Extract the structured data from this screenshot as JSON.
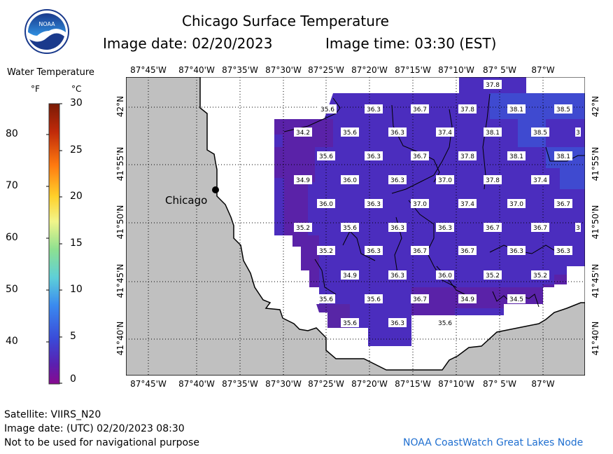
{
  "header": {
    "title": "Chicago Surface Temperature",
    "image_date": "Image date: 02/20/2023",
    "image_time": "Image time: 03:30 (EST)"
  },
  "logo": {
    "text": "NOAA",
    "icon": "noaa-logo"
  },
  "legend": {
    "title": "Water Temperature",
    "unit_f": "°F",
    "unit_c": "°C",
    "f_ticks": [
      "80",
      "70",
      "60",
      "50",
      "40"
    ],
    "c_ticks": [
      "30",
      "25",
      "20",
      "15",
      "10",
      "5",
      "0"
    ]
  },
  "map": {
    "lon_labels": [
      "87°45'W",
      "87°40'W",
      "87°35'W",
      "87°30'W",
      "87°25'W",
      "87°20'W",
      "87°15'W",
      "87°10'W",
      "87° 5'W",
      "87°W"
    ],
    "lat_labels": [
      "42°N",
      "41°55'N",
      "41°50'N",
      "41°45'N",
      "41°40'N"
    ],
    "city_label": "Chicago",
    "colors": {
      "land": "#c0c0c0",
      "water_warm": "#4a2fc0",
      "water_cool": "#5a22a8",
      "water_edge": "#3d48cc"
    },
    "temperature_labels": [
      {
        "v": "37.8"
      },
      {
        "v": "35.6"
      },
      {
        "v": "36.3"
      },
      {
        "v": "36.7"
      },
      {
        "v": "37.8"
      },
      {
        "v": "38.1"
      },
      {
        "v": "38.5"
      },
      {
        "v": "34.2"
      },
      {
        "v": "35.6"
      },
      {
        "v": "36.3"
      },
      {
        "v": "37.4"
      },
      {
        "v": "38.1"
      },
      {
        "v": "38.5"
      },
      {
        "v": "3"
      },
      {
        "v": "35.6"
      },
      {
        "v": "36.3"
      },
      {
        "v": "36.7"
      },
      {
        "v": "37.8"
      },
      {
        "v": "38.1"
      },
      {
        "v": "38.1"
      },
      {
        "v": "34.9"
      },
      {
        "v": "36.0"
      },
      {
        "v": "36.3"
      },
      {
        "v": "37.0"
      },
      {
        "v": "37.8"
      },
      {
        "v": "37.4"
      },
      {
        "v": "36.0"
      },
      {
        "v": "36.3"
      },
      {
        "v": "37.0"
      },
      {
        "v": "37.4"
      },
      {
        "v": "37.0"
      },
      {
        "v": "36.7"
      },
      {
        "v": "35.2"
      },
      {
        "v": "35.6"
      },
      {
        "v": "36.3"
      },
      {
        "v": "36.3"
      },
      {
        "v": "36.7"
      },
      {
        "v": "36.7"
      },
      {
        "v": "3"
      },
      {
        "v": "35.2"
      },
      {
        "v": "36.3"
      },
      {
        "v": "36.7"
      },
      {
        "v": "36.7"
      },
      {
        "v": "36.3"
      },
      {
        "v": "36.3"
      },
      {
        "v": "34.9"
      },
      {
        "v": "36.3"
      },
      {
        "v": "36.0"
      },
      {
        "v": "35.2"
      },
      {
        "v": "35.2"
      },
      {
        "v": "35.6"
      },
      {
        "v": "35.6"
      },
      {
        "v": "36.7"
      },
      {
        "v": "34.9"
      },
      {
        "v": "34.5"
      },
      {
        "v": "35.6"
      },
      {
        "v": "36.3"
      },
      {
        "v": "35.6"
      }
    ]
  },
  "footer": {
    "satellite": "Satellite: VIIRS_N20",
    "utc_date": "Image date: (UTC) 02/20/2023  08:30",
    "disclaimer": "Not to be used for navigational purpose",
    "credit": "NOAA CoastWatch Great Lakes Node"
  }
}
